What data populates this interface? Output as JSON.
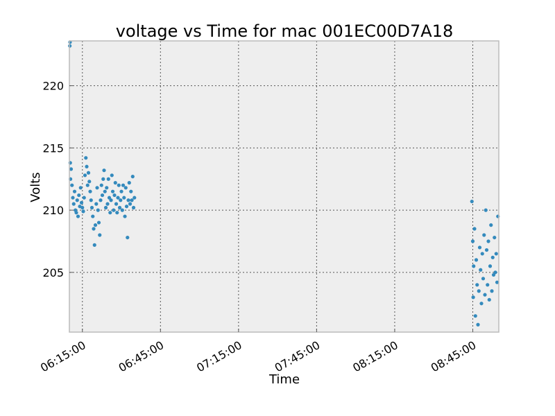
{
  "chart_data": {
    "type": "scatter",
    "title": "voltage vs Time for mac 001EC00D7A18",
    "xlabel": "Time",
    "ylabel": "Volts",
    "xlim": [
      "06:10:00",
      "08:55:00"
    ],
    "ylim": [
      200.2,
      223.6
    ],
    "xticks": [
      "06:15:00",
      "06:45:00",
      "07:15:00",
      "07:45:00",
      "08:15:00",
      "08:45:00"
    ],
    "yticks": [
      205,
      210,
      215,
      220
    ],
    "grid": true,
    "marker_color": "#348abd",
    "plot_background": "#eeeeee",
    "series": [
      {
        "points": [
          [
            "06:10:10",
            223.2
          ],
          [
            "06:10:15",
            223.5
          ],
          [
            "06:10:20",
            213.8
          ],
          [
            "06:10:25",
            212.5
          ],
          [
            "06:10:40",
            213.3
          ],
          [
            "06:11:00",
            212.0
          ],
          [
            "06:11:20",
            211.0
          ],
          [
            "06:11:40",
            210.5
          ],
          [
            "06:12:00",
            211.5
          ],
          [
            "06:12:20",
            210.0
          ],
          [
            "06:12:40",
            209.8
          ],
          [
            "06:13:00",
            210.8
          ],
          [
            "06:13:20",
            209.5
          ],
          [
            "06:13:40",
            211.2
          ],
          [
            "06:14:00",
            210.3
          ],
          [
            "06:14:20",
            211.8
          ],
          [
            "06:14:40",
            210.6
          ],
          [
            "06:15:00",
            210.2
          ],
          [
            "06:15:20",
            209.9
          ],
          [
            "06:15:40",
            211.0
          ],
          [
            "06:16:00",
            212.8
          ],
          [
            "06:16:20",
            214.2
          ],
          [
            "06:16:40",
            213.5
          ],
          [
            "06:17:00",
            212.0
          ],
          [
            "06:17:20",
            213.0
          ],
          [
            "06:17:40",
            212.3
          ],
          [
            "06:18:00",
            211.5
          ],
          [
            "06:18:20",
            210.8
          ],
          [
            "06:18:40",
            210.2
          ],
          [
            "06:19:00",
            209.5
          ],
          [
            "06:19:20",
            208.5
          ],
          [
            "06:19:40",
            207.2
          ],
          [
            "06:20:00",
            208.8
          ],
          [
            "06:20:20",
            210.5
          ],
          [
            "06:20:40",
            211.8
          ],
          [
            "06:21:00",
            210.0
          ],
          [
            "06:21:20",
            209.0
          ],
          [
            "06:21:40",
            208.0
          ],
          [
            "06:22:00",
            210.8
          ],
          [
            "06:22:20",
            212.0
          ],
          [
            "06:22:40",
            211.2
          ],
          [
            "06:23:00",
            212.5
          ],
          [
            "06:23:20",
            213.2
          ],
          [
            "06:23:40",
            211.5
          ],
          [
            "06:24:00",
            210.2
          ],
          [
            "06:24:20",
            211.8
          ],
          [
            "06:24:40",
            210.5
          ],
          [
            "06:25:00",
            212.5
          ],
          [
            "06:25:20",
            211.0
          ],
          [
            "06:25:40",
            209.8
          ],
          [
            "06:26:00",
            210.8
          ],
          [
            "06:26:20",
            212.8
          ],
          [
            "06:26:40",
            211.5
          ],
          [
            "06:27:00",
            210.0
          ],
          [
            "06:27:20",
            211.2
          ],
          [
            "06:27:40",
            212.2
          ],
          [
            "06:28:00",
            210.5
          ],
          [
            "06:28:20",
            209.8
          ],
          [
            "06:28:40",
            211.0
          ],
          [
            "06:29:00",
            212.0
          ],
          [
            "06:29:20",
            210.2
          ],
          [
            "06:29:40",
            210.8
          ],
          [
            "06:30:00",
            211.5
          ],
          [
            "06:30:20",
            210.0
          ],
          [
            "06:30:40",
            212.0
          ],
          [
            "06:31:00",
            211.0
          ],
          [
            "06:31:20",
            209.5
          ],
          [
            "06:31:40",
            211.8
          ],
          [
            "06:32:00",
            210.3
          ],
          [
            "06:32:20",
            207.8
          ],
          [
            "06:32:40",
            210.8
          ],
          [
            "06:33:00",
            212.2
          ],
          [
            "06:33:20",
            210.5
          ],
          [
            "06:33:40",
            211.5
          ],
          [
            "06:34:00",
            210.8
          ],
          [
            "06:34:20",
            212.7
          ],
          [
            "06:34:40",
            210.2
          ],
          [
            "06:35:00",
            211.0
          ],
          [
            "08:44:40",
            210.7
          ],
          [
            "08:45:00",
            207.5
          ],
          [
            "08:45:10",
            203.0
          ],
          [
            "08:45:20",
            205.5
          ],
          [
            "08:45:40",
            208.5
          ],
          [
            "08:46:00",
            201.5
          ],
          [
            "08:46:20",
            206.0
          ],
          [
            "08:46:40",
            204.0
          ],
          [
            "08:47:00",
            200.8
          ],
          [
            "08:47:20",
            203.5
          ],
          [
            "08:47:40",
            207.0
          ],
          [
            "08:48:00",
            205.2
          ],
          [
            "08:48:20",
            202.5
          ],
          [
            "08:48:40",
            206.5
          ],
          [
            "08:49:00",
            204.5
          ],
          [
            "08:49:20",
            208.0
          ],
          [
            "08:49:40",
            203.2
          ],
          [
            "08:50:00",
            210.0
          ],
          [
            "08:50:20",
            206.8
          ],
          [
            "08:50:40",
            204.0
          ],
          [
            "08:51:00",
            207.5
          ],
          [
            "08:51:20",
            202.8
          ],
          [
            "08:51:40",
            205.5
          ],
          [
            "08:52:00",
            208.8
          ],
          [
            "08:52:20",
            203.5
          ],
          [
            "08:52:40",
            206.2
          ],
          [
            "08:53:00",
            204.8
          ],
          [
            "08:53:20",
            207.8
          ],
          [
            "08:53:40",
            205.0
          ],
          [
            "08:54:00",
            206.5
          ],
          [
            "08:54:20",
            204.2
          ],
          [
            "08:54:40",
            209.5
          ]
        ]
      }
    ]
  }
}
